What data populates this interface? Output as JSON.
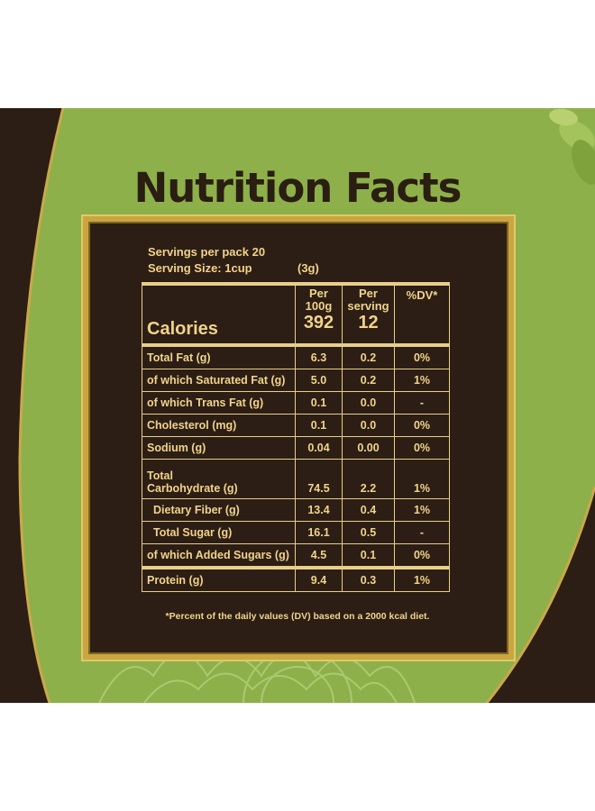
{
  "title": "Nutrition Facts",
  "servings": {
    "per_pack_label": "Servings per pack 20",
    "size_label": "Serving Size: 1cup",
    "size_value": "(3g)"
  },
  "header": {
    "per100_line1": "Per",
    "per100_line2": "100g",
    "perserving_line1": "Per",
    "perserving_line2": "serving",
    "dv": "%DV*",
    "calories_label": "Calories",
    "calories_100g": "392",
    "calories_serving": "12"
  },
  "rows": [
    {
      "label": "Total Fat (g)",
      "per100": "6.3",
      "serving": "0.2",
      "dv": "0%"
    },
    {
      "label": "of which Saturated Fat (g)",
      "per100": "5.0",
      "serving": "0.2",
      "dv": "1%"
    },
    {
      "label": "of which Trans Fat (g)",
      "per100": "0.1",
      "serving": "0.0",
      "dv": "-"
    },
    {
      "label": "Cholesterol (mg)",
      "per100": "0.1",
      "serving": "0.0",
      "dv": "0%"
    },
    {
      "label": "Sodium (g)",
      "per100": "0.04",
      "serving": "0.00",
      "dv": "0%"
    },
    {
      "label1": "Total",
      "label2": "Carbohydrate (g)",
      "per100": "74.5",
      "serving": "2.2",
      "dv": "1%"
    },
    {
      "label": "Dietary Fiber (g)",
      "per100": "13.4",
      "serving": "0.4",
      "dv": "1%"
    },
    {
      "label": "Total Sugar (g)",
      "per100": "16.1",
      "serving": "0.5",
      "dv": "-"
    },
    {
      "label": "of which Added Sugars (g)",
      "per100": "4.5",
      "serving": "0.1",
      "dv": "0%"
    },
    {
      "label": "Protein (g)",
      "per100": "9.4",
      "serving": "0.3",
      "dv": "1%"
    }
  ],
  "footnote": "*Percent of the daily values (DV) based on a 2000 kcal diet.",
  "colors": {
    "background_green": "#8db04a",
    "panel_brown": "#2c1e15",
    "gold": "#c9a640",
    "text_gold": "#f1d38a"
  }
}
